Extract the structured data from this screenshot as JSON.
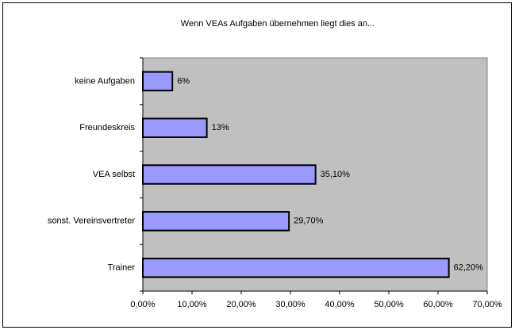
{
  "chart_data": {
    "type": "hbar",
    "title": "Wenn VEAs Aufgaben übernehmen liegt dies an...",
    "categories": [
      "keine Aufgaben",
      "Freundeskreis",
      "VEA selbst",
      "sonst. Vereinsvertreter",
      "Trainer"
    ],
    "values": [
      6,
      13,
      35.1,
      29.7,
      62.2
    ],
    "value_labels": [
      "6%",
      "13%",
      "35,10%",
      "29,70%",
      "62,20%"
    ],
    "color": "#9999ff",
    "xlim": [
      0,
      70
    ],
    "xticks": [
      {
        "value": 0,
        "label": "0,00%"
      },
      {
        "value": 10,
        "label": "10,00%"
      },
      {
        "value": 20,
        "label": "20,00%"
      },
      {
        "value": 30,
        "label": "30,00%"
      },
      {
        "value": 40,
        "label": "40,00%"
      },
      {
        "value": 50,
        "label": "50,00%"
      },
      {
        "value": 60,
        "label": "60,00%"
      },
      {
        "value": 70,
        "label": "70,00%"
      }
    ]
  }
}
